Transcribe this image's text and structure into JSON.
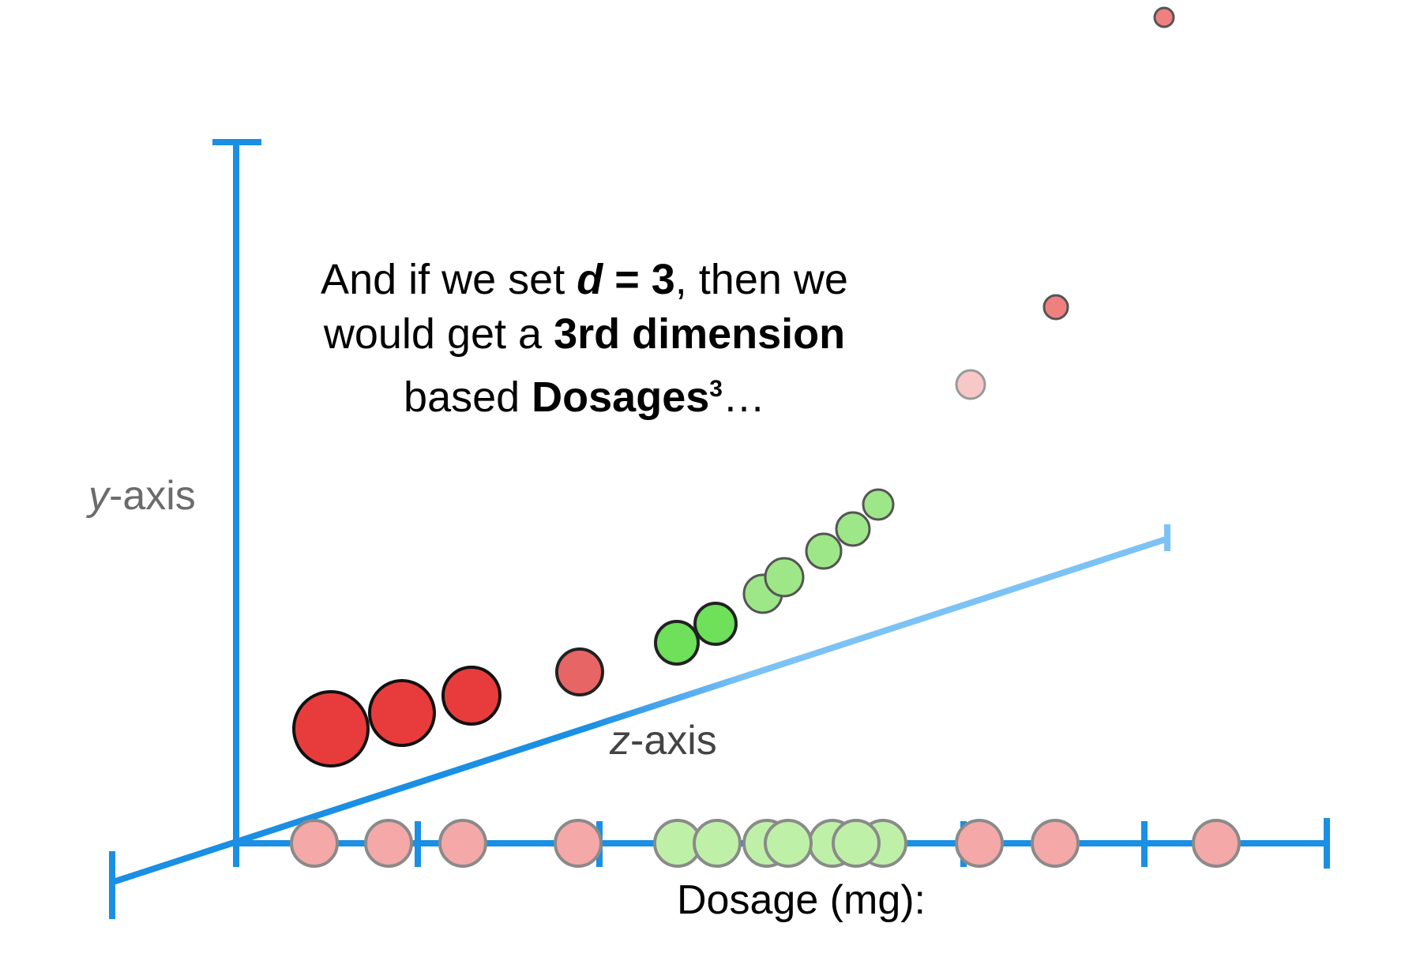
{
  "caption": {
    "line1_pre": "And if we set ",
    "d_var": "d",
    "line1_eq": " = 3",
    "line1_post": ", then we",
    "line2_pre": "would get a ",
    "line2_bold": "3rd dimension",
    "line3_pre": "based ",
    "line3_bold": "Dosages",
    "line3_sup": "3",
    "line3_post": "…"
  },
  "axes": {
    "y_var": "y",
    "y_rest": "-axis",
    "z_var": "z",
    "z_rest": "-axis",
    "x_label": "Dosage (mg):"
  },
  "colors": {
    "axis": "#1a8fe3",
    "axis_light": "#7cc2f5",
    "red": "#e84040",
    "red_light": "#f4a8a8",
    "green": "#7fe06a",
    "green_light": "#bff0a8",
    "outline": "#1a1a1a"
  },
  "chart_data": {
    "type": "scatter",
    "dosage_points": [
      {
        "class": "red"
      },
      {
        "class": "red"
      },
      {
        "class": "red"
      },
      {
        "class": "red"
      },
      {
        "class": "green"
      },
      {
        "class": "green"
      },
      {
        "class": "green"
      },
      {
        "class": "green"
      },
      {
        "class": "green"
      },
      {
        "class": "green"
      },
      {
        "class": "green"
      },
      {
        "class": "red"
      },
      {
        "class": "red"
      },
      {
        "class": "red"
      }
    ]
  }
}
